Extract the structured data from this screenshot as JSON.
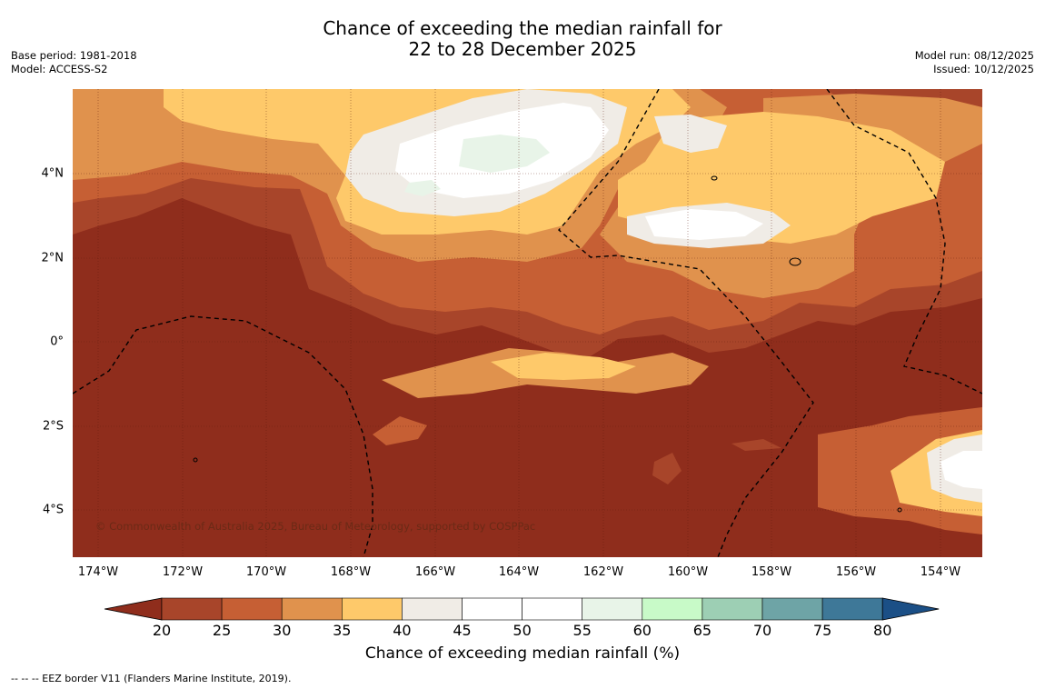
{
  "title": {
    "line1": "Chance of exceeding the median rainfall for",
    "line2": "22 to 28 December 2025"
  },
  "meta_left": {
    "base_period": "Base period: 1981-2018",
    "model": "Model: ACCESS-S2"
  },
  "meta_right": {
    "model_run": "Model run: 08/12/2025",
    "issued": "Issued: 10/12/2025"
  },
  "map": {
    "lon_labels": [
      "174°W",
      "172°W",
      "170°W",
      "168°W",
      "166°W",
      "164°W",
      "162°W",
      "160°W",
      "158°W",
      "156°W",
      "154°W"
    ],
    "lat_labels": [
      "4°N",
      "2°N",
      "0°",
      "2°S",
      "4°S"
    ],
    "copyright": "© Commonwealth of Australia 2025, Bureau of Meteorology, supported by COSPPac"
  },
  "colorbar": {
    "ticks": [
      "20",
      "25",
      "30",
      "35",
      "40",
      "45",
      "50",
      "55",
      "60",
      "65",
      "70",
      "75",
      "80"
    ],
    "colors": [
      "#8f2d1c",
      "#a8452a",
      "#c65f34",
      "#e0924d",
      "#fec96a",
      "#f0ece6",
      "#ffffff",
      "#ffffff",
      "#e8f4e8",
      "#c8fac8",
      "#9dcfb4",
      "#6ea4a6",
      "#3e7898",
      "#1b4f86"
    ],
    "title": "Chance of exceeding median rainfall (%)"
  },
  "legend": {
    "eez": "--  --  -- EEZ border V11 (Flanders Marine Institute, 2019)."
  }
}
